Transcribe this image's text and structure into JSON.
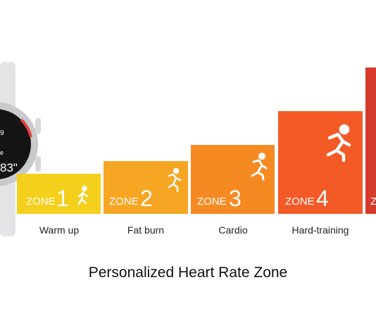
{
  "title": "Personalized Heart Rate Zone",
  "watch": {
    "lines": [
      "9",
      "e",
      "83\""
    ]
  },
  "zones": [
    {
      "zone": "ZONE",
      "number": "1",
      "label": "Warm up"
    },
    {
      "zone": "ZONE",
      "number": "2",
      "label": "Fat burn"
    },
    {
      "zone": "ZONE",
      "number": "3",
      "label": "Cardio"
    },
    {
      "zone": "ZONE",
      "number": "4",
      "label": "Hard-training"
    },
    {
      "zone": "Z"
    }
  ]
}
